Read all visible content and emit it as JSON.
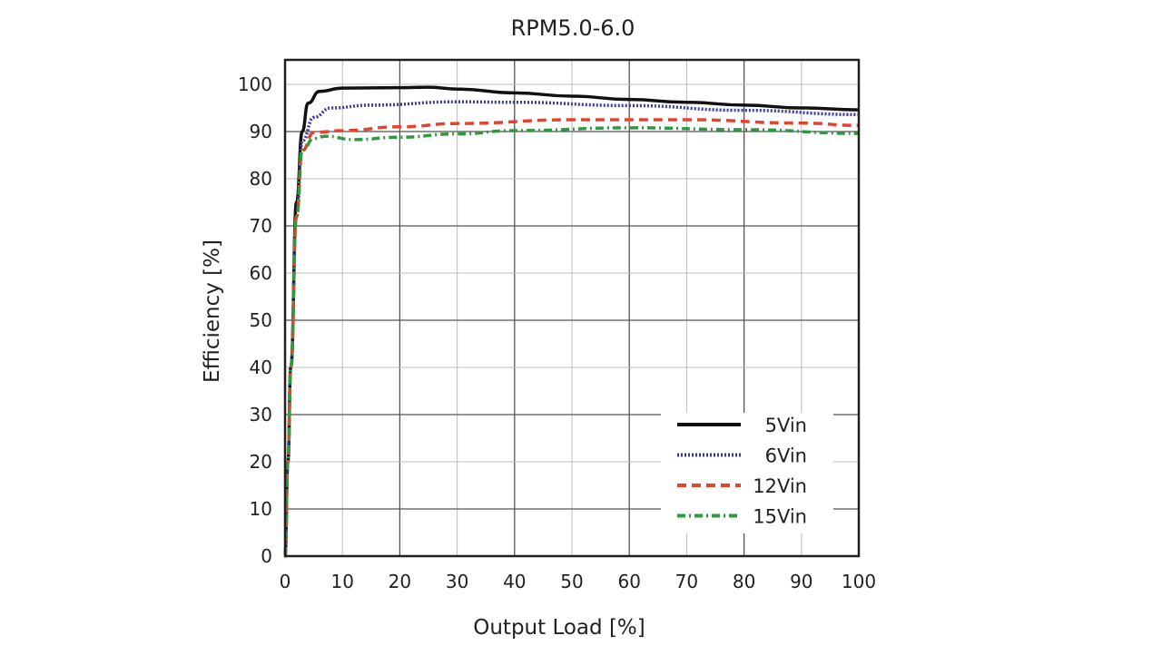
{
  "chart_data": {
    "type": "line",
    "title": "RPM5.0-6.0",
    "xlabel": "Output Load [%]",
    "ylabel": "Efficiency [%]",
    "xlim": [
      0,
      100
    ],
    "ylim": [
      0,
      105
    ],
    "xticks": [
      0,
      10,
      20,
      30,
      40,
      50,
      60,
      70,
      80,
      90,
      100
    ],
    "yticks": [
      0,
      10,
      20,
      30,
      40,
      50,
      60,
      70,
      80,
      90,
      100
    ],
    "grid": true,
    "legend_position": "bottom-right",
    "series": [
      {
        "name": "5Vin",
        "color": "#111111",
        "style": "solid",
        "x": [
          0,
          0.5,
          1,
          2,
          3,
          4,
          6,
          10,
          20,
          25,
          30,
          40,
          50,
          60,
          70,
          80,
          90,
          100
        ],
        "y": [
          0,
          20,
          40,
          75,
          90,
          96,
          98.5,
          99.2,
          99.3,
          99.4,
          99,
          98.2,
          97.5,
          96.8,
          96.2,
          95.6,
          95,
          94.6
        ]
      },
      {
        "name": "6Vin",
        "color": "#3a3a9a",
        "style": "dotted",
        "x": [
          0,
          0.5,
          1,
          2,
          3,
          5,
          8,
          15,
          30,
          40,
          60,
          80,
          100
        ],
        "y": [
          0,
          20,
          40,
          72,
          88,
          93,
          95,
          95.6,
          96.3,
          96.2,
          95.5,
          94.5,
          93.6
        ]
      },
      {
        "name": "12Vin",
        "color": "#e8412c",
        "style": "dashed",
        "x": [
          0,
          0.5,
          1,
          2,
          3,
          5,
          10,
          20,
          30,
          50,
          70,
          90,
          100
        ],
        "y": [
          0,
          20,
          40,
          72,
          86,
          89.8,
          90.2,
          91,
          91.7,
          92.5,
          92.5,
          91.8,
          91.3
        ]
      },
      {
        "name": "15Vin",
        "color": "#2e9a3e",
        "style": "dashdot",
        "x": [
          0,
          0.5,
          1,
          2,
          3,
          5,
          7,
          12,
          20,
          30,
          40,
          60,
          80,
          100
        ],
        "y": [
          0,
          20,
          40,
          72,
          86,
          88.5,
          89,
          88.3,
          88.8,
          89.5,
          90.2,
          90.8,
          90.4,
          89.6
        ]
      }
    ]
  }
}
